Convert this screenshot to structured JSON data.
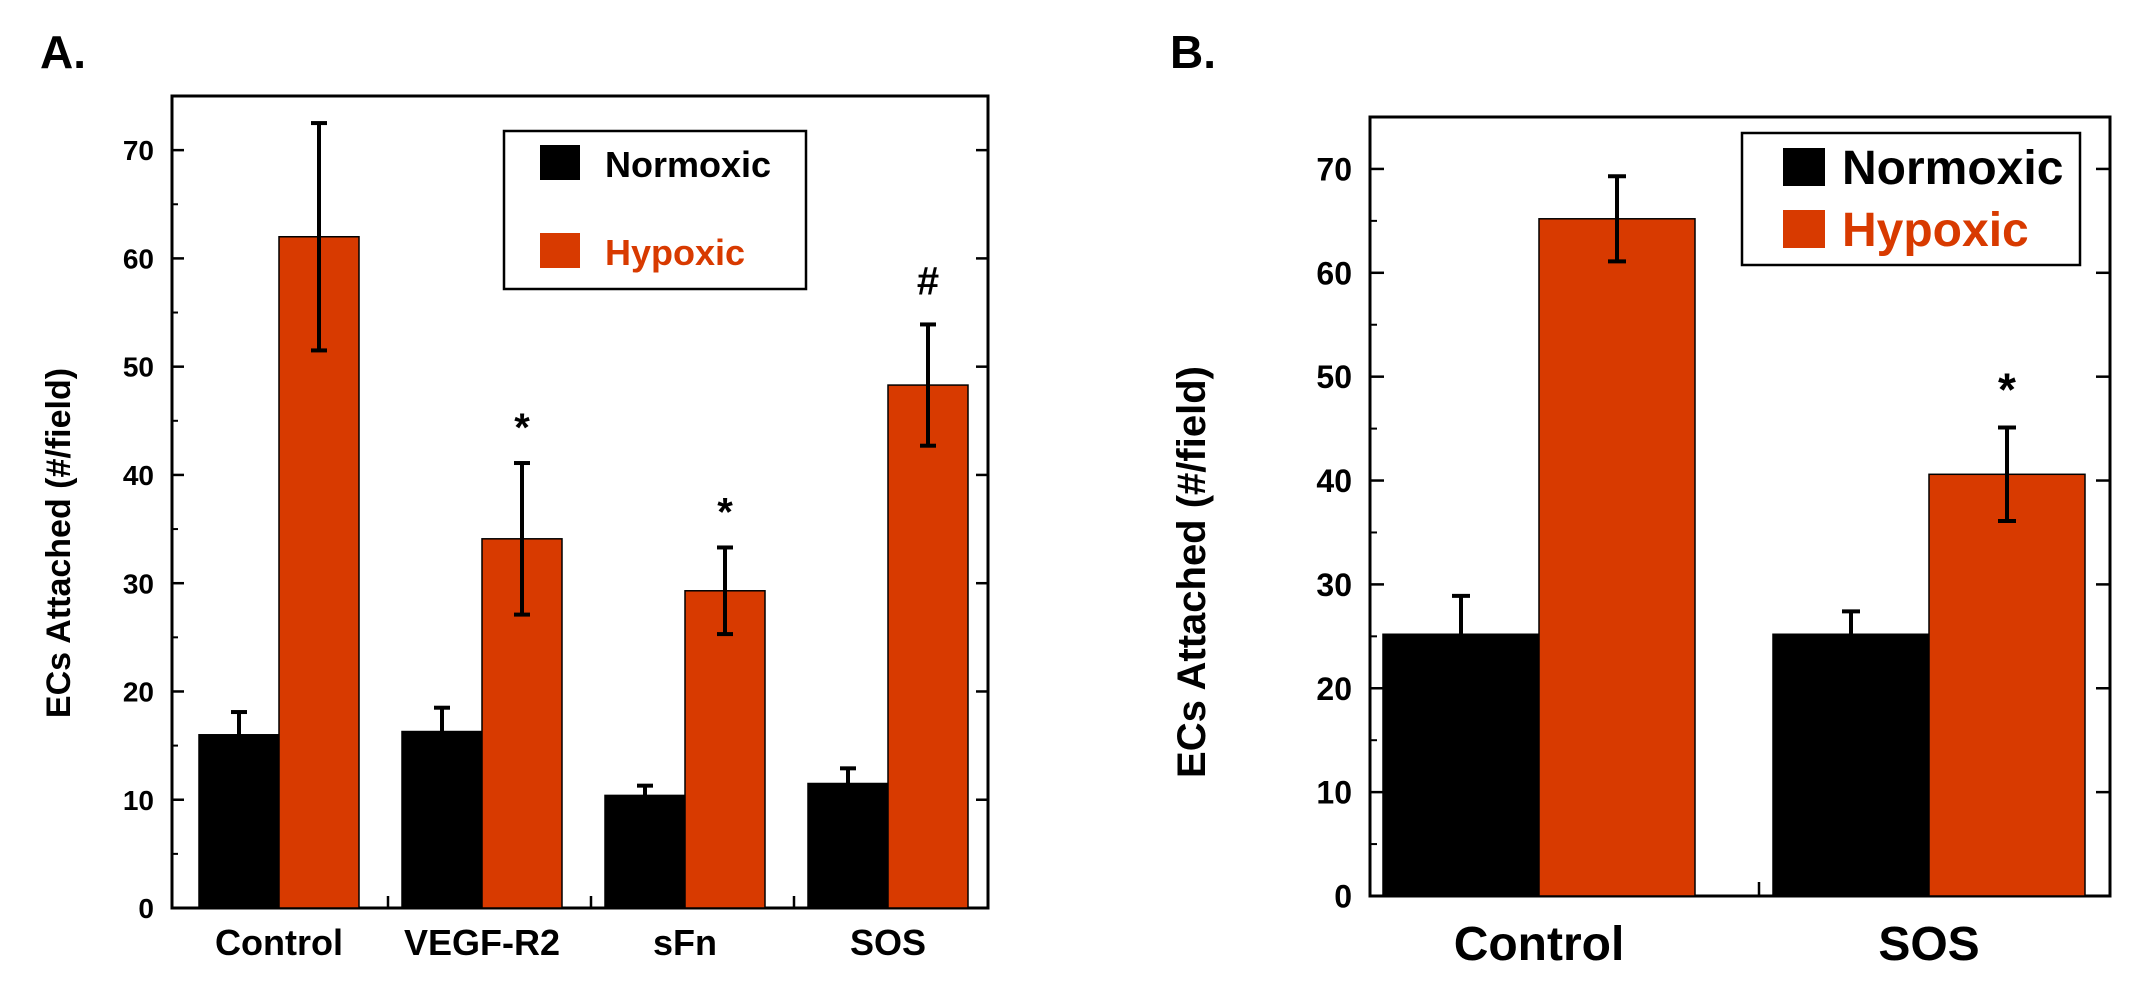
{
  "colors": {
    "normoxic": "#000000",
    "hypoxic": "#d83a00",
    "axis": "#000000"
  },
  "chart_data": [
    {
      "panel_label": "A.",
      "type": "bar",
      "title": "",
      "xlabel": "",
      "ylabel": "ECs Attached (#/field)",
      "ylim": [
        0,
        75
      ],
      "yticks": [
        0,
        10,
        20,
        30,
        40,
        50,
        60,
        70
      ],
      "grid": false,
      "legend_position": "top-right",
      "categories": [
        "Control",
        "VEGF-R2",
        "sFn",
        "SOS"
      ],
      "series": [
        {
          "name": "Normoxic",
          "color_key": "normoxic",
          "values": [
            16,
            16.3,
            10.4,
            11.5
          ],
          "errors": [
            2.1,
            2.2,
            0.9,
            1.4
          ]
        },
        {
          "name": "Hypoxic",
          "color_key": "hypoxic",
          "values": [
            62,
            34.1,
            29.3,
            48.3
          ],
          "errors": [
            10.5,
            7,
            4,
            5.6
          ]
        }
      ],
      "annotations": [
        {
          "category_index": 1,
          "series_index": 1,
          "text": "*"
        },
        {
          "category_index": 2,
          "series_index": 1,
          "text": "*"
        },
        {
          "category_index": 3,
          "series_index": 1,
          "text": "#"
        }
      ]
    },
    {
      "panel_label": "B.",
      "type": "bar",
      "title": "",
      "xlabel": "",
      "ylabel": "ECs Attached (#/field)",
      "ylim": [
        0,
        75
      ],
      "yticks": [
        0,
        10,
        20,
        30,
        40,
        50,
        60,
        70
      ],
      "grid": false,
      "legend_position": "top-right",
      "categories": [
        "Control",
        "SOS"
      ],
      "series": [
        {
          "name": "Normoxic",
          "color_key": "normoxic",
          "values": [
            25.2,
            25.2
          ],
          "errors": [
            3.7,
            2.2
          ]
        },
        {
          "name": "Hypoxic",
          "color_key": "hypoxic",
          "values": [
            65.2,
            40.6
          ],
          "errors": [
            4.1,
            4.5
          ]
        }
      ],
      "annotations": [
        {
          "category_index": 1,
          "series_index": 1,
          "text": "*"
        }
      ]
    }
  ]
}
